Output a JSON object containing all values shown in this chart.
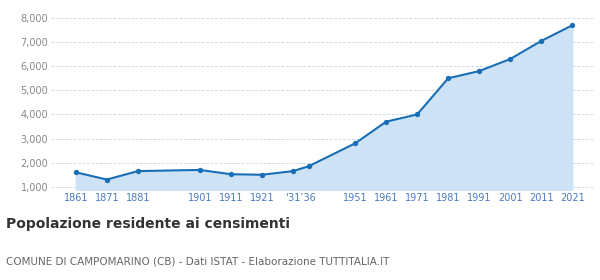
{
  "years": [
    1861,
    1871,
    1881,
    1901,
    1911,
    1921,
    1931,
    1936,
    1951,
    1961,
    1971,
    1981,
    1991,
    2001,
    2011,
    2021
  ],
  "population": [
    1600,
    1300,
    1650,
    1700,
    1520,
    1500,
    1650,
    1850,
    2800,
    3700,
    4000,
    5500,
    5800,
    6300,
    7050,
    7700
  ],
  "xtick_positions": [
    1861,
    1871,
    1881,
    1901,
    1911,
    1921,
    1933.5,
    1951,
    1961,
    1971,
    1981,
    1991,
    2001,
    2011,
    2021
  ],
  "xtick_labels": [
    "1861",
    "1871",
    "1881",
    "1901",
    "1911",
    "1921",
    "‘31’36",
    "1951",
    "1961",
    "1971",
    "1981",
    "1991",
    "2001",
    "2011",
    "2021"
  ],
  "yticks": [
    1000,
    2000,
    3000,
    4000,
    5000,
    6000,
    7000,
    8000
  ],
  "ylim": [
    850,
    8400
  ],
  "xlim": [
    1853,
    2028
  ],
  "line_color": "#1a6eb5",
  "fill_color": "#cde3f5",
  "marker_color": "#1a6eb5",
  "bg_color": "#ffffff",
  "grid_color": "#c8d8e8",
  "title": "Popolazione residente ai censimenti",
  "subtitle": "COMUNE DI CAMPOMARINO (CB) - Dati ISTAT - Elaborazione TUTTITALIA.IT",
  "title_fontsize": 10,
  "subtitle_fontsize": 7.5,
  "tick_label_color": "#4a7abf",
  "tick_label_size": 7,
  "ytick_label_color": "#888888"
}
